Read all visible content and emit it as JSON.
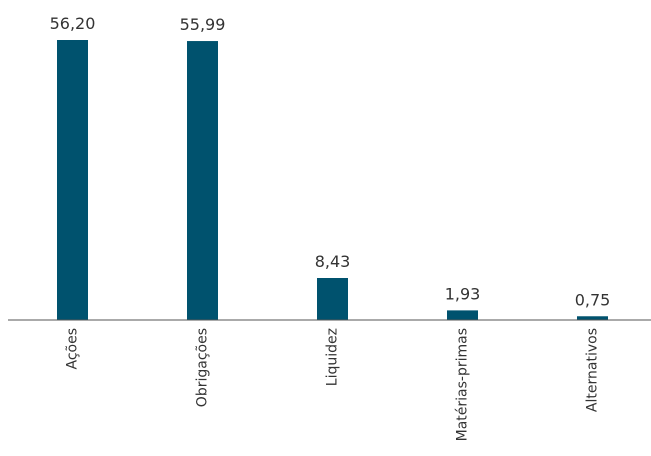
{
  "chart_data": {
    "type": "bar",
    "categories": [
      "Ações",
      "Obrigações",
      "Liquidez",
      "Matérias-primas",
      "Alternativos"
    ],
    "values": [
      56.2,
      55.99,
      8.43,
      1.93,
      0.75
    ],
    "value_labels": [
      "56,20",
      "55,99",
      "8,43",
      "1,93",
      "0,75"
    ],
    "title": "",
    "xlabel": "",
    "ylabel": "",
    "ylim": [
      0,
      56.2
    ],
    "grid": false,
    "legend": "none",
    "bar_color": "#00526e",
    "axis_color": "#555555"
  }
}
